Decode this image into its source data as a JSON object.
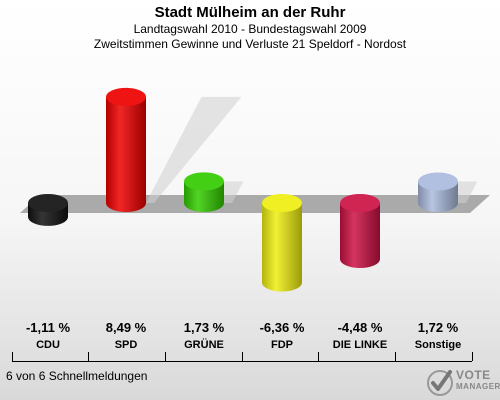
{
  "header": {
    "title": "Stadt Mülheim an der Ruhr",
    "subtitle1": "Landtagswahl 2010 - Bundestagswahl 2009",
    "subtitle2": "Zweitstimmen Gewinne und Verluste 21 Speldorf - Nordost"
  },
  "footer": {
    "text": "6 von 6 Schnellmeldungen"
  },
  "logo": {
    "line1": "VOTE",
    "line2": "MANAGER",
    "icon": "vote-checkmark-icon"
  },
  "value_labels": [
    "-1,11 %",
    "8,49 %",
    "1,73 %",
    "-6,36 %",
    "-4,48 %",
    "1,72 %"
  ],
  "category_labels": [
    "CDU",
    "SPD",
    "GRÜNE",
    "FDP",
    "DIE LINKE",
    "Sonstige"
  ],
  "chart_data": {
    "type": "bar",
    "categories": [
      "CDU",
      "SPD",
      "GRÜNE",
      "FDP",
      "DIE LINKE",
      "Sonstige"
    ],
    "values": [
      -1.11,
      8.49,
      1.73,
      -6.36,
      -4.48,
      1.72
    ],
    "unit": "%",
    "colors": [
      "#111111",
      "#ee0000",
      "#33cc00",
      "#eeee11",
      "#cc1144",
      "#aabbdd"
    ],
    "grid": false,
    "style": "3d-cylinder"
  }
}
